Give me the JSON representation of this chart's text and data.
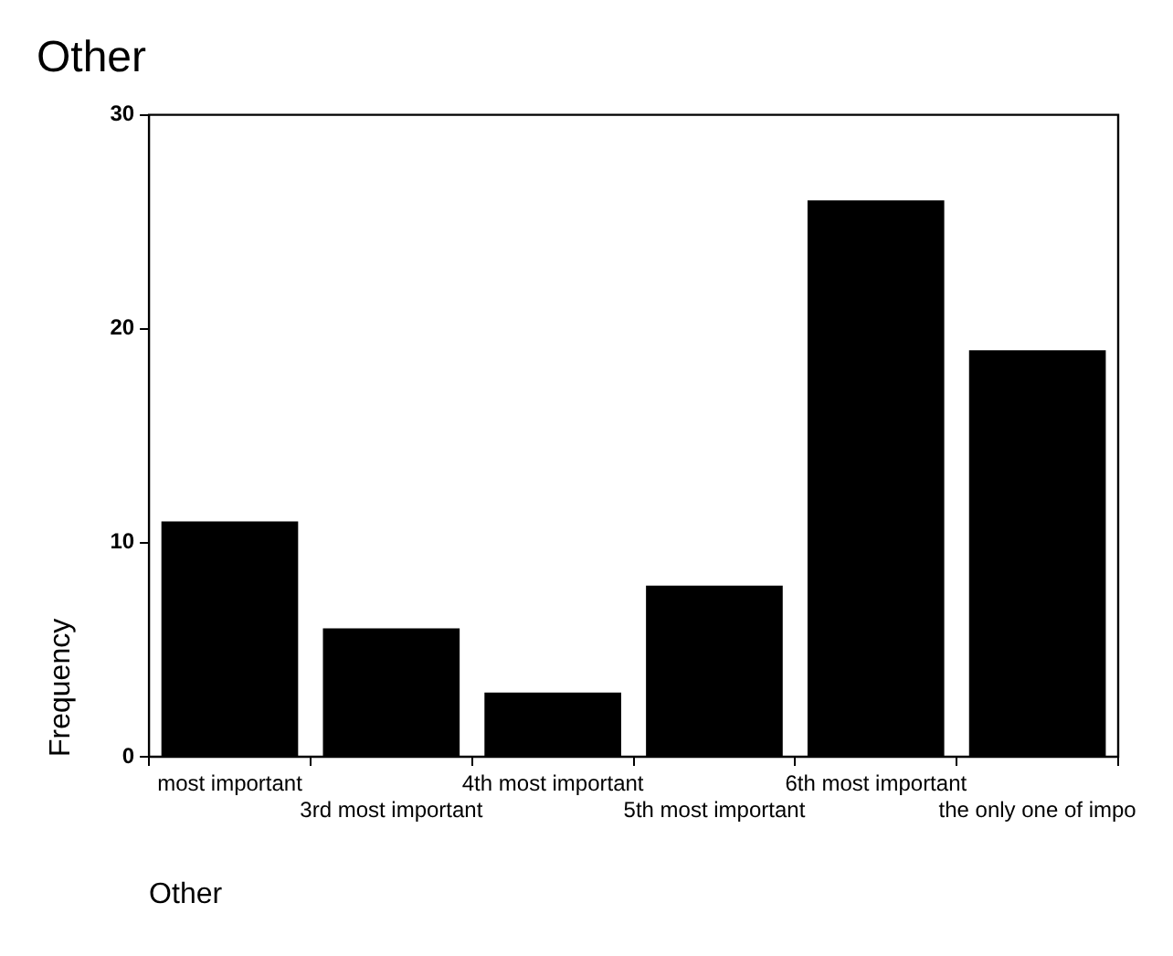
{
  "chart_data": {
    "type": "bar",
    "title": "Other",
    "xlabel": "Other",
    "ylabel": "Frequency",
    "categories": [
      "most important",
      "3rd most important",
      "4th most important",
      "5th most important",
      "6th most important",
      "the only one of impo"
    ],
    "values": [
      11,
      6,
      3,
      8,
      26,
      19
    ],
    "color": "#000000",
    "ylim": [
      0,
      30
    ],
    "yticks": [
      0,
      10,
      20,
      30
    ]
  }
}
